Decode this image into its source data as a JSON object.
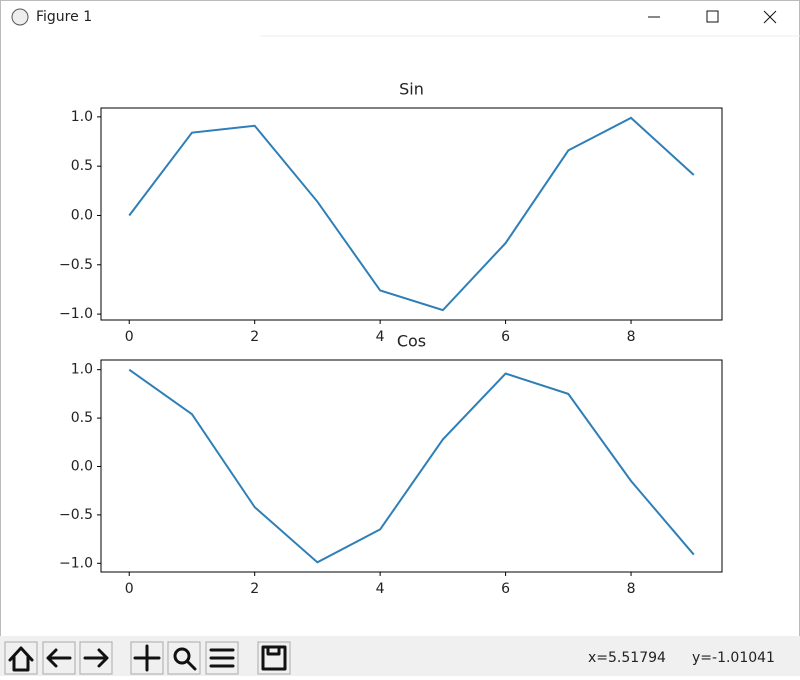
{
  "window": {
    "title": "Figure 1"
  },
  "status": {
    "x": "x=5.51794",
    "y": "y=-1.01041"
  },
  "chart_data": [
    {
      "type": "line",
      "title": "Sin",
      "color": "#2e7fb8",
      "x": [
        0,
        1,
        2,
        3,
        4,
        5,
        6,
        7,
        8,
        9
      ],
      "values": [
        0,
        0.84,
        0.91,
        0.14,
        -0.76,
        -0.96,
        -0.28,
        0.66,
        0.99,
        0.41
      ],
      "xlim": [
        -0.45,
        9.45
      ],
      "ylim": [
        -1.06,
        1.09
      ],
      "xticks": [
        0,
        2,
        4,
        6,
        8
      ],
      "yticks": [
        {
          "value": -1,
          "label": "−1.0"
        },
        {
          "value": -0.5,
          "label": "−0.5"
        },
        {
          "value": 0,
          "label": "0.0"
        },
        {
          "value": 0.5,
          "label": "0.5"
        },
        {
          "value": 1,
          "label": "1.0"
        }
      ]
    },
    {
      "type": "line",
      "title": "Cos",
      "color": "#2e7fb8",
      "x": [
        0,
        1,
        2,
        3,
        4,
        5,
        6,
        7,
        8,
        9
      ],
      "values": [
        1,
        0.54,
        -0.42,
        -0.99,
        -0.65,
        0.28,
        0.96,
        0.75,
        -0.15,
        -0.91
      ],
      "xlim": [
        -0.45,
        9.45
      ],
      "ylim": [
        -1.09,
        1.1
      ],
      "xticks": [
        0,
        2,
        4,
        6,
        8
      ],
      "yticks": [
        {
          "value": -1,
          "label": "−1.0"
        },
        {
          "value": -0.5,
          "label": "−0.5"
        },
        {
          "value": 0,
          "label": "0.0"
        },
        {
          "value": 0.5,
          "label": "0.5"
        },
        {
          "value": 1,
          "label": "1.0"
        }
      ]
    }
  ]
}
